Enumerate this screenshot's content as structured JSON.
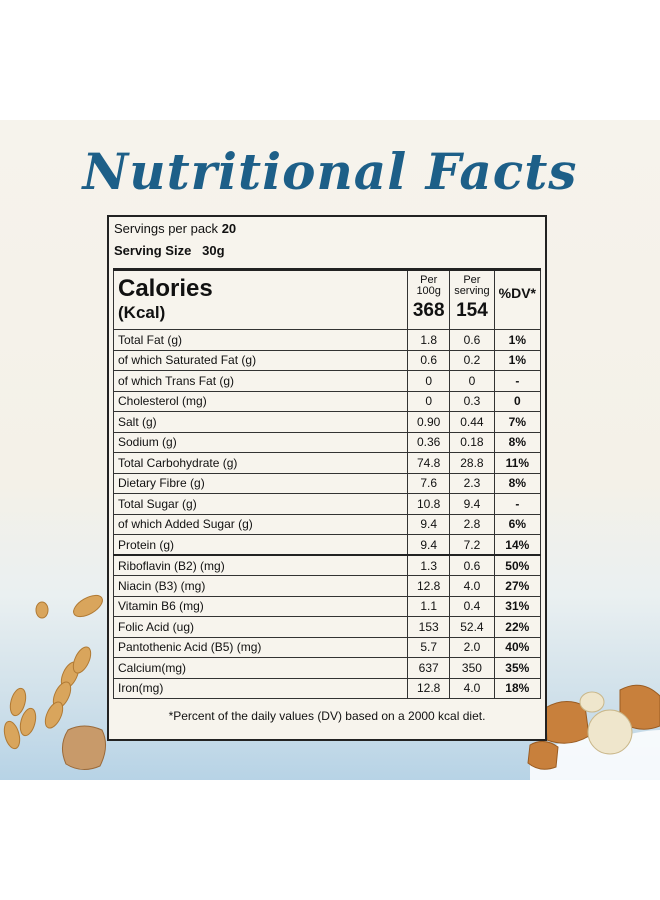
{
  "title": "Nutritional Facts",
  "servings_per_pack_label": "Servings per pack",
  "servings_per_pack_value": "20",
  "serving_size_label": "Serving Size",
  "serving_size_value": "30g",
  "header": {
    "calories": "Calories",
    "kcal": "(Kcal)",
    "per100_label": "Per 100g",
    "per100_value": "368",
    "perserving_label": "Per serving",
    "perserving_value": "154",
    "dv_label": "%DV*"
  },
  "rows": [
    {
      "name": "Total Fat (g)",
      "per100": "1.8",
      "perserving": "0.6",
      "dv": "1%"
    },
    {
      "name": " of which Saturated Fat (g)",
      "per100": "0.6",
      "perserving": "0.2",
      "dv": "1%"
    },
    {
      "name": " of which Trans Fat (g)",
      "per100": "0",
      "perserving": "0",
      "dv": "-"
    },
    {
      "name": "Cholesterol (mg)",
      "per100": "0",
      "perserving": "0.3",
      "dv": "0"
    },
    {
      "name": "Salt (g)",
      "per100": "0.90",
      "perserving": "0.44",
      "dv": "7%"
    },
    {
      "name": "Sodium (g)",
      "per100": "0.36",
      "perserving": "0.18",
      "dv": "8%"
    },
    {
      "name": "Total Carbohydrate (g)",
      "per100": "74.8",
      "perserving": "28.8",
      "dv": "11%"
    },
    {
      "name": "Dietary Fibre (g)",
      "per100": "7.6",
      "perserving": "2.3",
      "dv": "8%"
    },
    {
      "name": "Total Sugar (g)",
      "per100": "10.8",
      "perserving": "9.4",
      "dv": "-"
    },
    {
      "name": " of which Added Sugar (g)",
      "per100": "9.4",
      "perserving": "2.8",
      "dv": "6%"
    },
    {
      "name": "Protein (g)",
      "per100": "9.4",
      "perserving": "7.2",
      "dv": "14%"
    },
    {
      "name": "Riboflavin (B2) (mg)",
      "per100": "1.3",
      "perserving": "0.6",
      "dv": "50%"
    },
    {
      "name": "Niacin (B3) (mg)",
      "per100": "12.8",
      "perserving": "4.0",
      "dv": "27%"
    },
    {
      "name": "Vitamin B6 (mg)",
      "per100": "1.1",
      "perserving": "0.4",
      "dv": "31%"
    },
    {
      "name": "Folic Acid (ug)",
      "per100": "153",
      "perserving": "52.4",
      "dv": "22%"
    },
    {
      "name": "Pantothenic Acid (B5) (mg)",
      "per100": "5.7",
      "perserving": "2.0",
      "dv": "40%"
    },
    {
      "name": "Calcium(mg)",
      "per100": "637",
      "perserving": "350",
      "dv": "35%"
    },
    {
      "name": "Iron(mg)",
      "per100": "12.8",
      "perserving": "4.0",
      "dv": "18%"
    }
  ],
  "footnote": "*Percent of the daily values (DV) based on a 2000 kcal diet."
}
